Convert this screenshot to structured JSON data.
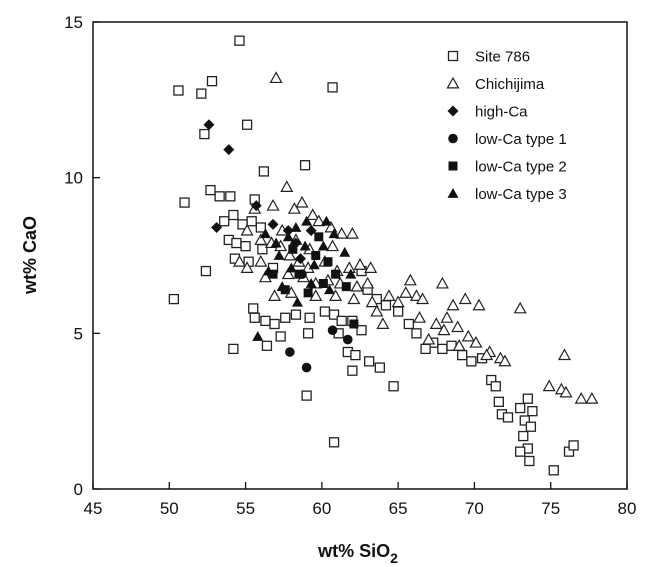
{
  "chart_data": {
    "type": "scatter",
    "title": "",
    "xlabel": "wt% SiO",
    "xlabel_sub": "2",
    "ylabel": "wt% CaO",
    "xlim": [
      45,
      80
    ],
    "ylim": [
      0,
      15
    ],
    "xticks": [
      45,
      50,
      55,
      60,
      65,
      70,
      75,
      80
    ],
    "yticks": [
      0,
      5,
      10,
      15
    ],
    "grid": false,
    "legend": "top-right",
    "series": [
      {
        "name": "Site 786",
        "marker": "square-open",
        "points": [
          [
            54.6,
            14.4
          ],
          [
            50.6,
            12.8
          ],
          [
            52.1,
            12.7
          ],
          [
            52.8,
            13.1
          ],
          [
            60.7,
            12.9
          ],
          [
            52.3,
            11.4
          ],
          [
            55.1,
            11.7
          ],
          [
            51.0,
            9.2
          ],
          [
            52.7,
            9.6
          ],
          [
            53.3,
            9.4
          ],
          [
            54.0,
            9.4
          ],
          [
            55.6,
            9.3
          ],
          [
            56.2,
            10.2
          ],
          [
            58.9,
            10.4
          ],
          [
            53.6,
            8.6
          ],
          [
            54.2,
            8.8
          ],
          [
            54.8,
            8.5
          ],
          [
            55.4,
            8.6
          ],
          [
            56.0,
            8.4
          ],
          [
            53.9,
            8.0
          ],
          [
            54.4,
            7.9
          ],
          [
            55.0,
            7.8
          ],
          [
            56.1,
            7.7
          ],
          [
            54.3,
            7.4
          ],
          [
            55.2,
            7.3
          ],
          [
            56.8,
            7.1
          ],
          [
            52.4,
            7.0
          ],
          [
            50.3,
            6.1
          ],
          [
            55.5,
            5.8
          ],
          [
            55.6,
            5.5
          ],
          [
            56.3,
            5.4
          ],
          [
            56.9,
            5.3
          ],
          [
            57.6,
            5.5
          ],
          [
            58.3,
            5.6
          ],
          [
            59.2,
            5.5
          ],
          [
            60.2,
            5.7
          ],
          [
            60.8,
            5.6
          ],
          [
            61.3,
            5.4
          ],
          [
            62.0,
            5.4
          ],
          [
            62.6,
            5.1
          ],
          [
            61.1,
            5.0
          ],
          [
            61.7,
            4.4
          ],
          [
            62.2,
            4.3
          ],
          [
            62.0,
            3.8
          ],
          [
            63.1,
            4.1
          ],
          [
            63.8,
            3.9
          ],
          [
            54.2,
            4.5
          ],
          [
            56.4,
            4.6
          ],
          [
            57.3,
            4.9
          ],
          [
            59.1,
            5.0
          ],
          [
            59.0,
            3.0
          ],
          [
            60.8,
            1.5
          ],
          [
            62.6,
            7.0
          ],
          [
            63.0,
            6.4
          ],
          [
            63.6,
            6.1
          ],
          [
            64.2,
            5.9
          ],
          [
            65.0,
            5.7
          ],
          [
            65.7,
            5.3
          ],
          [
            66.2,
            5.0
          ],
          [
            67.3,
            4.7
          ],
          [
            67.9,
            4.5
          ],
          [
            68.5,
            4.6
          ],
          [
            69.2,
            4.3
          ],
          [
            69.8,
            4.1
          ],
          [
            64.7,
            3.3
          ],
          [
            66.8,
            4.5
          ],
          [
            70.5,
            4.2
          ],
          [
            71.1,
            3.5
          ],
          [
            71.4,
            3.3
          ],
          [
            71.6,
            2.8
          ],
          [
            71.8,
            2.4
          ],
          [
            72.2,
            2.3
          ],
          [
            73.0,
            2.6
          ],
          [
            73.3,
            2.2
          ],
          [
            73.7,
            2.0
          ],
          [
            73.5,
            2.9
          ],
          [
            73.8,
            2.5
          ],
          [
            73.2,
            1.7
          ],
          [
            73.5,
            1.3
          ],
          [
            73.0,
            1.2
          ],
          [
            73.6,
            0.9
          ],
          [
            75.2,
            0.6
          ],
          [
            76.2,
            1.2
          ],
          [
            76.5,
            1.4
          ]
        ]
      },
      {
        "name": "Chichijima",
        "marker": "triangle-open",
        "points": [
          [
            57.0,
            13.2
          ],
          [
            57.7,
            9.7
          ],
          [
            55.6,
            9.0
          ],
          [
            56.8,
            9.1
          ],
          [
            58.2,
            9.0
          ],
          [
            58.7,
            9.2
          ],
          [
            59.4,
            8.8
          ],
          [
            60.6,
            8.4
          ],
          [
            61.3,
            8.2
          ],
          [
            59.8,
            8.6
          ],
          [
            55.1,
            8.3
          ],
          [
            56.0,
            8.0
          ],
          [
            56.7,
            7.9
          ],
          [
            57.3,
            7.8
          ],
          [
            57.9,
            7.5
          ],
          [
            58.5,
            7.3
          ],
          [
            59.1,
            7.1
          ],
          [
            60.2,
            7.3
          ],
          [
            61.0,
            7.0
          ],
          [
            61.8,
            7.1
          ],
          [
            62.5,
            7.2
          ],
          [
            63.2,
            7.1
          ],
          [
            54.6,
            7.3
          ],
          [
            55.1,
            7.1
          ],
          [
            56.3,
            6.8
          ],
          [
            57.8,
            6.9
          ],
          [
            58.8,
            6.8
          ],
          [
            59.6,
            6.6
          ],
          [
            60.4,
            6.7
          ],
          [
            61.2,
            6.6
          ],
          [
            62.3,
            6.5
          ],
          [
            63.0,
            6.6
          ],
          [
            64.4,
            6.2
          ],
          [
            65.5,
            6.3
          ],
          [
            66.2,
            6.2
          ],
          [
            65.0,
            6.0
          ],
          [
            65.8,
            6.7
          ],
          [
            66.6,
            6.1
          ],
          [
            67.9,
            6.6
          ],
          [
            68.6,
            5.9
          ],
          [
            69.4,
            6.1
          ],
          [
            70.3,
            5.9
          ],
          [
            66.4,
            5.5
          ],
          [
            67.5,
            5.3
          ],
          [
            68.2,
            5.5
          ],
          [
            68.9,
            5.2
          ],
          [
            69.6,
            4.9
          ],
          [
            70.1,
            4.7
          ],
          [
            71.0,
            4.4
          ],
          [
            71.7,
            4.2
          ],
          [
            72.0,
            4.1
          ],
          [
            73.0,
            5.8
          ],
          [
            75.9,
            4.3
          ],
          [
            74.9,
            3.3
          ],
          [
            75.7,
            3.2
          ],
          [
            76.0,
            3.1
          ],
          [
            77.0,
            2.9
          ],
          [
            77.7,
            2.9
          ],
          [
            62.0,
            8.2
          ],
          [
            60.7,
            7.8
          ],
          [
            59.2,
            7.7
          ],
          [
            58.3,
            8.0
          ],
          [
            57.4,
            8.3
          ],
          [
            56.0,
            7.3
          ],
          [
            56.9,
            6.2
          ],
          [
            58.0,
            6.3
          ],
          [
            59.6,
            6.2
          ],
          [
            60.9,
            6.2
          ],
          [
            62.1,
            6.1
          ],
          [
            63.3,
            6.0
          ],
          [
            64.0,
            5.3
          ],
          [
            63.6,
            5.7
          ],
          [
            67.0,
            4.8
          ],
          [
            68.0,
            5.1
          ],
          [
            69.0,
            4.6
          ],
          [
            70.8,
            4.3
          ]
        ]
      },
      {
        "name": "high-Ca",
        "marker": "diamond-filled",
        "points": [
          [
            52.6,
            11.7
          ],
          [
            53.9,
            10.9
          ],
          [
            53.1,
            8.4
          ],
          [
            55.7,
            9.1
          ],
          [
            56.8,
            8.5
          ],
          [
            57.8,
            8.3
          ],
          [
            58.3,
            7.9
          ],
          [
            59.3,
            8.3
          ],
          [
            58.6,
            7.4
          ]
        ]
      },
      {
        "name": "low-Ca type 1",
        "marker": "circle-filled",
        "points": [
          [
            57.9,
            4.4
          ],
          [
            59.0,
            3.9
          ],
          [
            60.7,
            5.1
          ],
          [
            61.7,
            4.8
          ],
          [
            58.7,
            6.9
          ]
        ]
      },
      {
        "name": "low-Ca type 2",
        "marker": "square-filled",
        "points": [
          [
            56.8,
            6.9
          ],
          [
            57.6,
            6.4
          ],
          [
            58.5,
            6.9
          ],
          [
            59.1,
            6.3
          ],
          [
            59.6,
            7.5
          ],
          [
            60.4,
            7.3
          ],
          [
            60.9,
            6.9
          ],
          [
            61.6,
            6.5
          ],
          [
            62.1,
            5.3
          ],
          [
            60.1,
            6.6
          ],
          [
            58.1,
            7.7
          ],
          [
            59.8,
            8.1
          ]
        ]
      },
      {
        "name": "low-Ca type 3",
        "marker": "triangle-filled",
        "points": [
          [
            55.8,
            4.9
          ],
          [
            56.5,
            7.0
          ],
          [
            57.2,
            7.5
          ],
          [
            57.8,
            8.1
          ],
          [
            58.3,
            8.4
          ],
          [
            58.9,
            7.8
          ],
          [
            59.5,
            7.2
          ],
          [
            60.1,
            7.8
          ],
          [
            60.8,
            8.2
          ],
          [
            61.5,
            7.6
          ],
          [
            57.4,
            6.5
          ],
          [
            58.4,
            6.0
          ],
          [
            59.3,
            6.6
          ],
          [
            60.5,
            6.4
          ],
          [
            61.9,
            6.9
          ],
          [
            58.0,
            7.1
          ],
          [
            59.0,
            8.6
          ],
          [
            60.3,
            8.6
          ],
          [
            57.0,
            7.9
          ],
          [
            56.3,
            8.2
          ]
        ]
      }
    ]
  }
}
